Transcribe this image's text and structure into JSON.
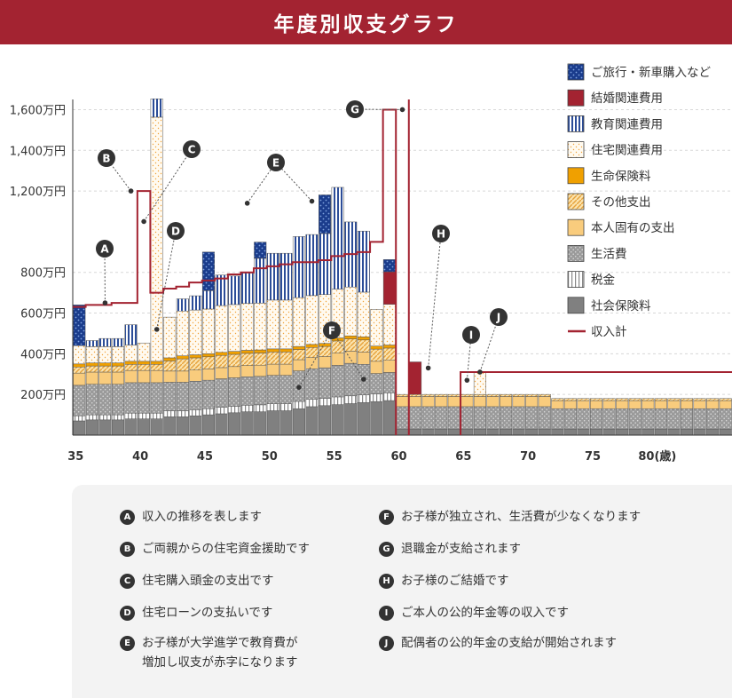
{
  "title": "年度別収支グラフ",
  "legend": [
    {
      "name": "ご旅行・新車購入など",
      "pattern": "travel"
    },
    {
      "name": "結婚関連費用",
      "pattern": "wedding"
    },
    {
      "name": "教育関連費用",
      "pattern": "edu"
    },
    {
      "name": "住宅関連費用",
      "pattern": "house"
    },
    {
      "name": "生命保険料",
      "pattern": "life"
    },
    {
      "name": "その他支出",
      "pattern": "other"
    },
    {
      "name": "本人固有の支出",
      "pattern": "own"
    },
    {
      "name": "生活費",
      "pattern": "living"
    },
    {
      "name": "税金",
      "pattern": "tax"
    },
    {
      "name": "社会保険料",
      "pattern": "social"
    },
    {
      "name": "収入計",
      "pattern": "line"
    }
  ],
  "colors": {
    "accent": "#a32331",
    "travel": "#1a3c8c",
    "wedding": "#a32331",
    "edu": "#2c4d98",
    "house": "#f5a623",
    "life": "#f0a000",
    "other": "#f2b843",
    "own": "#f9cc7d",
    "living": "#8c8c8c",
    "tax": "#888888",
    "social": "#808080"
  },
  "chart_data": {
    "type": "bar",
    "stacked": true,
    "xlabel": "",
    "x_ticks": [
      35,
      40,
      45,
      50,
      55,
      60,
      65,
      70,
      75,
      80
    ],
    "x_unit": "(歳)",
    "x_range": [
      35,
      86
    ],
    "y_ticks": [
      200,
      400,
      600,
      800,
      1200,
      1400,
      1600
    ],
    "y_tick_labels": [
      "200万円",
      "400万円",
      "600万円",
      "800万円",
      "1,200万円",
      "1,400万円",
      "1,600万円"
    ],
    "y_unit": "万円",
    "ylim": [
      0,
      1650
    ],
    "series": [
      {
        "name": "社会保険料",
        "key": "social",
        "values": [
          70,
          75,
          75,
          75,
          80,
          80,
          80,
          90,
          90,
          95,
          100,
          105,
          110,
          115,
          115,
          120,
          120,
          130,
          140,
          145,
          150,
          155,
          160,
          165,
          170,
          30,
          30,
          30,
          30,
          30,
          30,
          30,
          30,
          30,
          30,
          30,
          30,
          30,
          30,
          30,
          30,
          30,
          30,
          30,
          30,
          30,
          30,
          30,
          30,
          30,
          30
        ]
      },
      {
        "name": "税金",
        "key": "tax",
        "values": [
          25,
          25,
          25,
          25,
          28,
          28,
          28,
          30,
          30,
          30,
          30,
          32,
          32,
          32,
          34,
          34,
          34,
          36,
          36,
          36,
          38,
          38,
          38,
          38,
          38,
          0,
          0,
          0,
          0,
          0,
          0,
          0,
          0,
          0,
          0,
          0,
          0,
          0,
          0,
          0,
          0,
          0,
          0,
          0,
          0,
          0,
          0,
          0,
          0,
          0,
          0
        ]
      },
      {
        "name": "生活費",
        "key": "living",
        "values": [
          150,
          150,
          150,
          150,
          150,
          150,
          150,
          140,
          140,
          140,
          140,
          140,
          140,
          140,
          140,
          140,
          140,
          150,
          150,
          150,
          155,
          160,
          150,
          100,
          100,
          110,
          110,
          110,
          110,
          110,
          110,
          110,
          110,
          110,
          110,
          110,
          110,
          100,
          100,
          100,
          100,
          100,
          100,
          100,
          100,
          100,
          100,
          100,
          100,
          100,
          100
        ]
      },
      {
        "name": "本人固有の支出",
        "key": "own",
        "values": [
          60,
          60,
          60,
          60,
          60,
          60,
          60,
          55,
          55,
          55,
          55,
          55,
          55,
          55,
          55,
          55,
          55,
          55,
          55,
          55,
          60,
          60,
          60,
          60,
          60,
          50,
          50,
          50,
          50,
          50,
          50,
          50,
          50,
          50,
          50,
          50,
          50,
          40,
          40,
          40,
          40,
          40,
          40,
          40,
          40,
          40,
          40,
          40,
          40,
          40,
          40
        ]
      },
      {
        "name": "その他支出",
        "key": "other",
        "values": [
          30,
          30,
          30,
          30,
          30,
          30,
          30,
          50,
          60,
          60,
          60,
          60,
          60,
          60,
          60,
          60,
          60,
          50,
          50,
          50,
          60,
          60,
          60,
          60,
          60,
          10,
          10,
          10,
          10,
          10,
          10,
          10,
          10,
          10,
          10,
          10,
          10,
          10,
          10,
          10,
          10,
          10,
          10,
          10,
          10,
          10,
          10,
          10,
          10,
          10,
          10
        ]
      },
      {
        "name": "生命保険料",
        "key": "life",
        "values": [
          15,
          15,
          15,
          15,
          15,
          15,
          15,
          15,
          15,
          15,
          15,
          15,
          15,
          15,
          15,
          15,
          15,
          15,
          15,
          15,
          15,
          15,
          15,
          15,
          15,
          0,
          0,
          0,
          0,
          0,
          0,
          0,
          0,
          0,
          0,
          0,
          0,
          0,
          0,
          0,
          0,
          0,
          0,
          0,
          0,
          0,
          0,
          0,
          0,
          0,
          0
        ]
      },
      {
        "name": "住宅関連費用",
        "key": "house",
        "values": [
          90,
          80,
          80,
          80,
          80,
          90,
          1200,
          200,
          220,
          220,
          220,
          230,
          230,
          230,
          230,
          240,
          240,
          240,
          240,
          240,
          240,
          240,
          220,
          180,
          200,
          0,
          0,
          0,
          0,
          0,
          0,
          110,
          0,
          0,
          0,
          0,
          0,
          0,
          0,
          0,
          0,
          0,
          0,
          0,
          0,
          0,
          0,
          0,
          0,
          0,
          0
        ]
      },
      {
        "name": "教育関連費用",
        "key": "edu",
        "values": [
          0,
          30,
          40,
          40,
          100,
          0,
          90,
          0,
          60,
          70,
          90,
          150,
          140,
          150,
          220,
          230,
          230,
          300,
          300,
          300,
          500,
          320,
          300,
          0,
          0,
          0,
          0,
          0,
          0,
          0,
          0,
          0,
          0,
          0,
          0,
          0,
          0,
          0,
          0,
          0,
          0,
          0,
          0,
          0,
          0,
          0,
          0,
          0,
          0,
          0,
          0
        ]
      },
      {
        "name": "結婚関連費用",
        "key": "wedding",
        "values": [
          0,
          0,
          0,
          0,
          0,
          0,
          0,
          0,
          0,
          0,
          0,
          0,
          0,
          0,
          0,
          0,
          0,
          0,
          0,
          0,
          0,
          0,
          0,
          0,
          160,
          0,
          160,
          0,
          0,
          0,
          0,
          0,
          0,
          0,
          0,
          0,
          0,
          0,
          0,
          0,
          0,
          0,
          0,
          0,
          0,
          0,
          0,
          0,
          0,
          0,
          0
        ]
      },
      {
        "name": "ご旅行・新車購入など",
        "key": "travel",
        "values": [
          200,
          0,
          0,
          0,
          0,
          0,
          0,
          0,
          0,
          0,
          190,
          0,
          0,
          0,
          80,
          0,
          0,
          0,
          0,
          190,
          0,
          0,
          0,
          0,
          60,
          0,
          0,
          0,
          0,
          0,
          0,
          0,
          0,
          0,
          0,
          0,
          0,
          0,
          0,
          0,
          0,
          0,
          0,
          0,
          0,
          0,
          0,
          0,
          0,
          0,
          0
        ]
      }
    ],
    "income_line": {
      "name": "収入計",
      "values": [
        630,
        640,
        640,
        650,
        650,
        1200,
        700,
        720,
        730,
        750,
        760,
        770,
        790,
        800,
        820,
        830,
        840,
        850,
        850,
        860,
        880,
        890,
        900,
        950,
        1600,
        0,
        0,
        0,
        0,
        0,
        310,
        310,
        310,
        310,
        310,
        310,
        310,
        310,
        310,
        310,
        310,
        310,
        310,
        310,
        310,
        310,
        310,
        310,
        310,
        310,
        310
      ]
    },
    "annotations": [
      {
        "label": "A",
        "age": 37,
        "value": 650
      },
      {
        "label": "B",
        "age": 39,
        "value": 1200
      },
      {
        "label": "C",
        "age": 40,
        "value": 1050
      },
      {
        "label": "D",
        "age": 41,
        "value": 520
      },
      {
        "label": "E",
        "age": 48,
        "value": 1140
      },
      {
        "label": "E",
        "age": 53,
        "value": 1150
      },
      {
        "label": "F",
        "age": 52,
        "value": 235
      },
      {
        "label": "F",
        "age": 57,
        "value": 275
      },
      {
        "label": "G",
        "age": 60,
        "value": 1600
      },
      {
        "label": "H",
        "age": 62,
        "value": 330
      },
      {
        "label": "I",
        "age": 65,
        "value": 270
      },
      {
        "label": "J",
        "age": 66,
        "value": 310
      }
    ]
  },
  "notes": [
    {
      "badge": "A",
      "text": "収入の推移を表します"
    },
    {
      "badge": "B",
      "text": "ご両親からの住宅資金援助です"
    },
    {
      "badge": "C",
      "text": "住宅購入頭金の支出です"
    },
    {
      "badge": "D",
      "text": "住宅ローンの支払いです"
    },
    {
      "badge": "E",
      "text": "お子様が大学進学で教育費が\n増加し収支が赤字になります"
    },
    {
      "badge": "F",
      "text": "お子様が独立され、生活費が少なくなります"
    },
    {
      "badge": "G",
      "text": "退職金が支給されます"
    },
    {
      "badge": "H",
      "text": "お子様のご結婚です"
    },
    {
      "badge": "I",
      "text": "ご本人の公的年金等の収入です"
    },
    {
      "badge": "J",
      "text": "配偶者の公的年金の支給が開始されます"
    }
  ]
}
